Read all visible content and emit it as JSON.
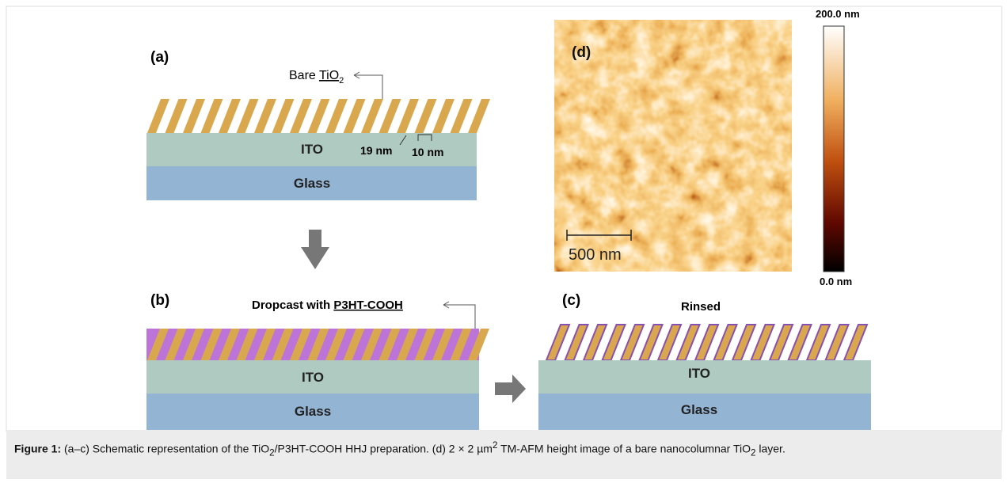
{
  "panel_a": {
    "label": "(a)",
    "callout": [
      "Bare ",
      "TiO",
      "2"
    ],
    "layers": [
      "ITO",
      "Glass"
    ],
    "dimensions": [
      "19 nm",
      "10 nm"
    ]
  },
  "panel_b": {
    "label": "(b)",
    "callout": [
      "Dropcast with ",
      "P3HT-COOH"
    ],
    "layers": [
      "ITO",
      "Glass"
    ]
  },
  "panel_c": {
    "label": "(c)",
    "callout": "Rinsed",
    "layers": [
      "ITO",
      "Glass"
    ]
  },
  "panel_d": {
    "label": "(d)",
    "scale_bar": "500 nm",
    "colorbar_max": "200.0 nm",
    "colorbar_min": "0.0 nm"
  },
  "caption": {
    "label": "Figure 1:",
    "parts": [
      " (a–c) Schematic representation of the TiO",
      "2",
      "/P3HT-COOH HHJ preparation. (d) 2 × 2 µm",
      "2",
      " TM-AFM height image of a bare nanocolumnar TiO",
      "2",
      " layer."
    ]
  }
}
